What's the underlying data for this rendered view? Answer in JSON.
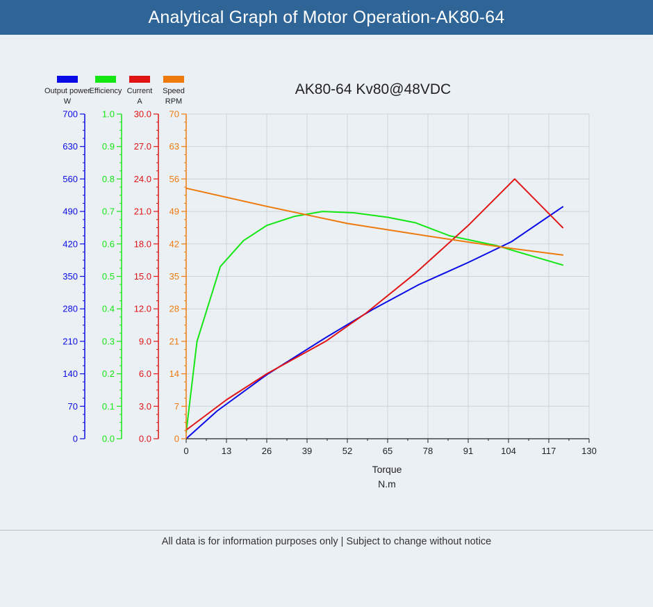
{
  "header": {
    "title": "Analytical Graph of Motor Operation-AK80-64"
  },
  "footer": {
    "note": "All data is for information purposes only | Subject to change without notice"
  },
  "chart_data": {
    "type": "line",
    "title": "AK80-64 Kv80@48VDC",
    "xlabel": "Torque",
    "xunit": "N.m",
    "xlim": [
      0,
      130
    ],
    "xticks": [
      "0",
      "13",
      "26",
      "39",
      "52",
      "65",
      "78",
      "91",
      "104",
      "117",
      "130"
    ],
    "grid": true,
    "legend_position": "top-left",
    "axes": [
      {
        "key": "power",
        "name": "Output power",
        "unit": "W",
        "color": "#0a0ae6",
        "min": 0,
        "max": 700,
        "ticks": [
          "0",
          "70",
          "140",
          "210",
          "280",
          "350",
          "420",
          "490",
          "560",
          "630",
          "700"
        ]
      },
      {
        "key": "efficiency",
        "name": "Efficiency",
        "unit": "",
        "color": "#14e614",
        "min": 0,
        "max": 1,
        "ticks": [
          "0.0",
          "0.1",
          "0.2",
          "0.3",
          "0.4",
          "0.5",
          "0.6",
          "0.7",
          "0.8",
          "0.9",
          "1.0"
        ]
      },
      {
        "key": "current",
        "name": "Current",
        "unit": "A",
        "color": "#e01414",
        "min": 0,
        "max": 30,
        "ticks": [
          "0.0",
          "3.0",
          "6.0",
          "9.0",
          "12.0",
          "15.0",
          "18.0",
          "21.0",
          "24.0",
          "27.0",
          "30.0"
        ]
      },
      {
        "key": "speed",
        "name": "Speed",
        "unit": "RPM",
        "color": "#ee7a0c",
        "min": 0,
        "max": 70,
        "ticks": [
          "0",
          "7",
          "14",
          "21",
          "28",
          "35",
          "42",
          "49",
          "56",
          "63",
          "70"
        ]
      }
    ],
    "series": [
      {
        "name": "Output power",
        "axis": "power",
        "color": "#0a0ae6",
        "points": [
          [
            0,
            0
          ],
          [
            10,
            60
          ],
          [
            26,
            138
          ],
          [
            45,
            218
          ],
          [
            60,
            278
          ],
          [
            75,
            332
          ],
          [
            91,
            380
          ],
          [
            105,
            425
          ],
          [
            121.5,
            500
          ]
        ]
      },
      {
        "name": "Efficiency",
        "axis": "efficiency",
        "color": "#14e614",
        "points": [
          [
            0,
            0.02
          ],
          [
            3.5,
            0.3
          ],
          [
            11,
            0.53
          ],
          [
            18.5,
            0.61
          ],
          [
            26,
            0.657
          ],
          [
            35,
            0.685
          ],
          [
            44,
            0.7
          ],
          [
            54,
            0.696
          ],
          [
            65,
            0.682
          ],
          [
            74,
            0.665
          ],
          [
            85,
            0.625
          ],
          [
            100,
            0.595
          ],
          [
            121.5,
            0.535
          ]
        ]
      },
      {
        "name": "Current",
        "axis": "current",
        "color": "#e01414",
        "points": [
          [
            0,
            0.8
          ],
          [
            13,
            3.6
          ],
          [
            26,
            6.0
          ],
          [
            45,
            9.0
          ],
          [
            58,
            11.6
          ],
          [
            74,
            15.3
          ],
          [
            91,
            19.7
          ],
          [
            106,
            24.0
          ],
          [
            121.5,
            19.5
          ]
        ]
      },
      {
        "name": "Speed",
        "axis": "speed",
        "color": "#ee7a0c",
        "points": [
          [
            0,
            54
          ],
          [
            26,
            50.1
          ],
          [
            52,
            46.4
          ],
          [
            78,
            43.7
          ],
          [
            104,
            41.1
          ],
          [
            121.5,
            39.6
          ]
        ]
      }
    ]
  }
}
